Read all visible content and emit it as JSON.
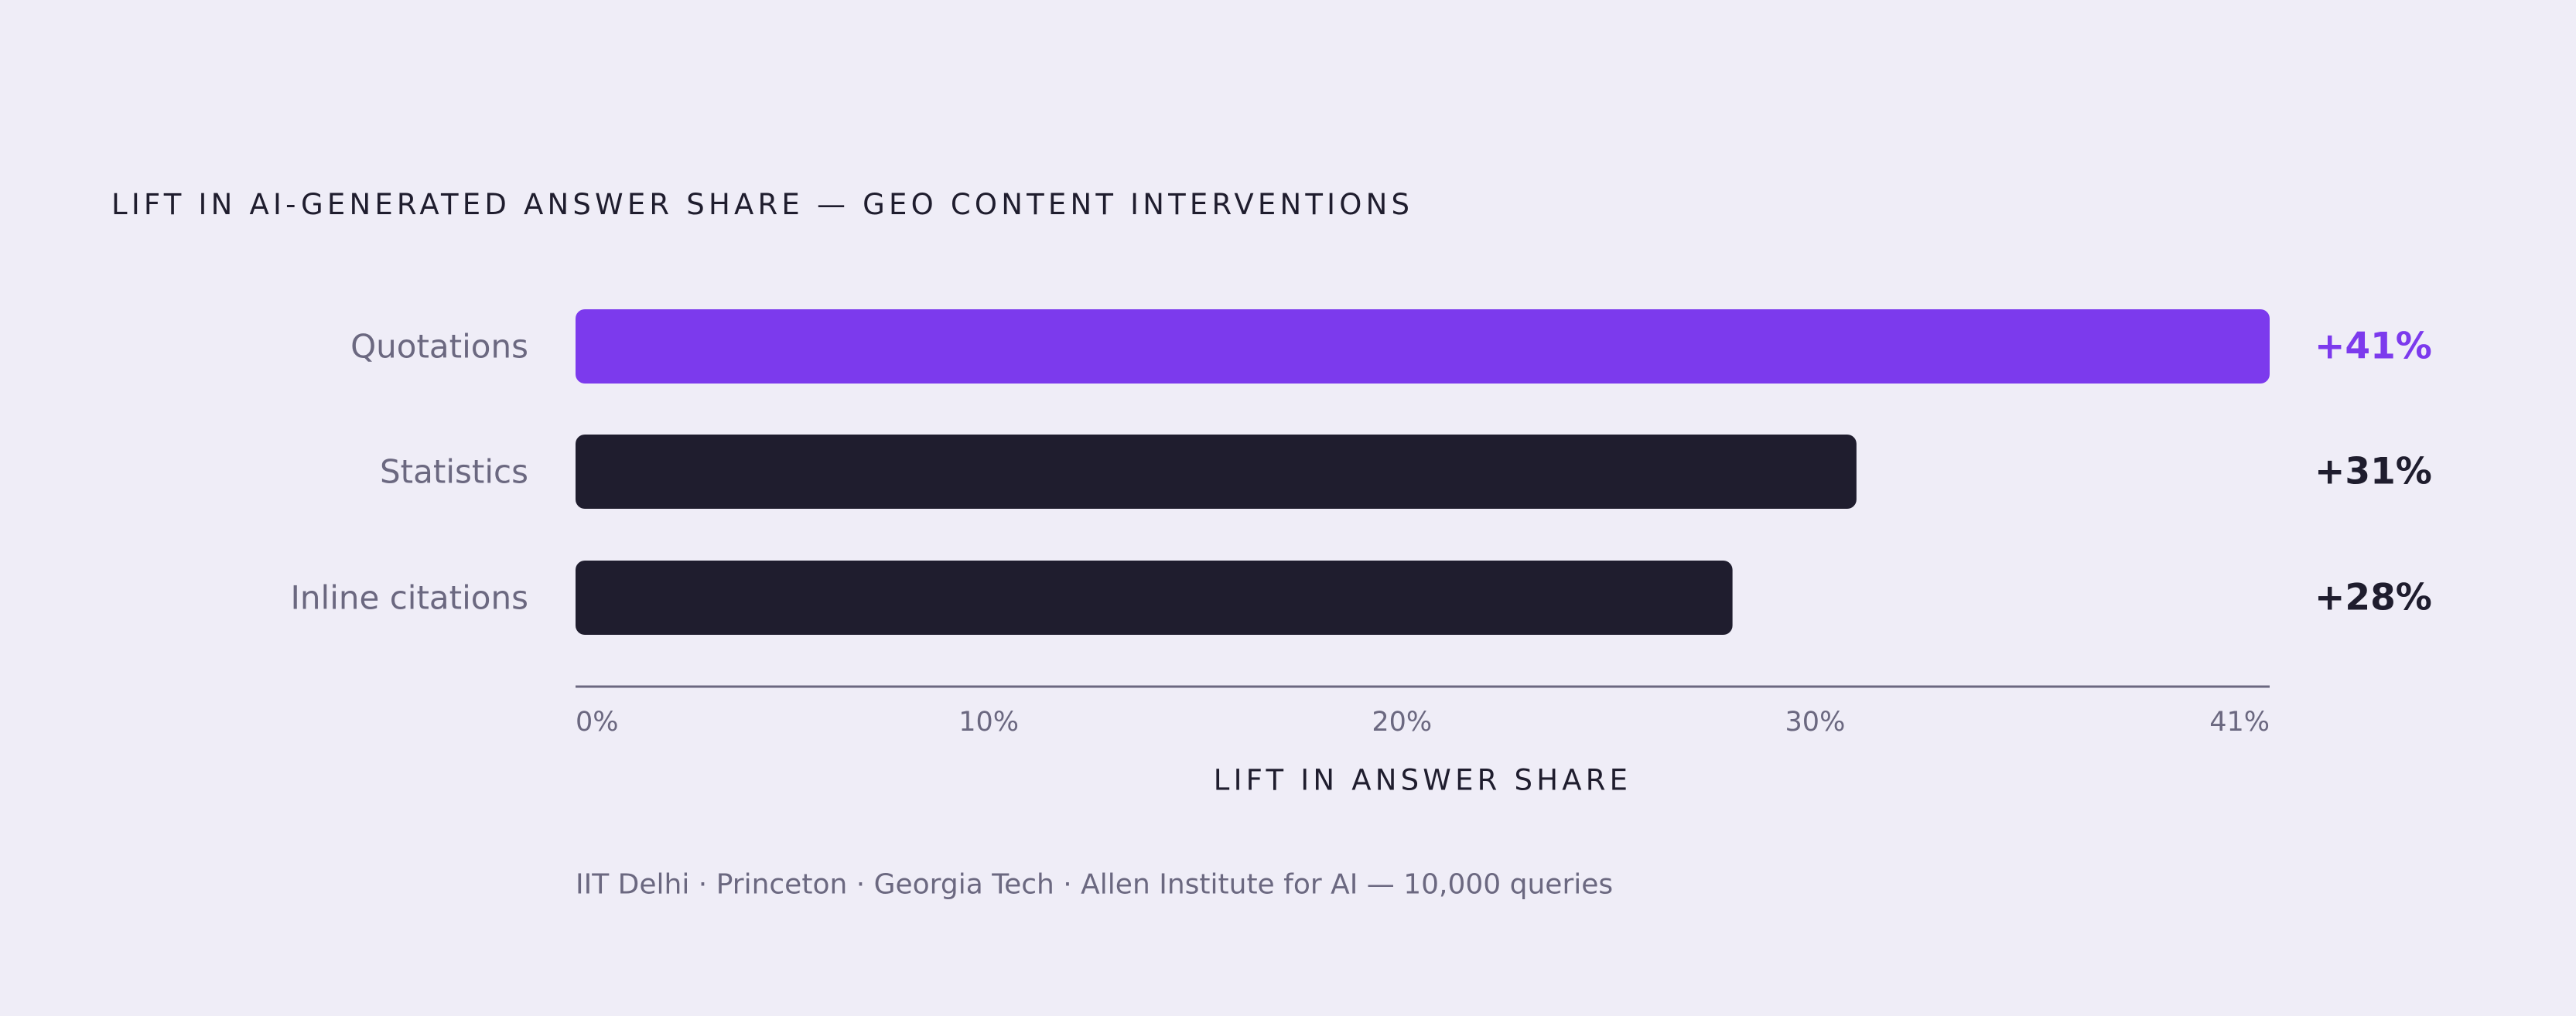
{
  "chart_data": {
    "type": "bar",
    "orientation": "horizontal",
    "title": "LIFT IN AI-GENERATED ANSWER SHARE — GEO CONTENT INTERVENTIONS",
    "categories": [
      "Quotations",
      "Statistics",
      "Inline citations"
    ],
    "values": [
      41,
      31,
      28
    ],
    "value_labels": [
      "+41%",
      "+31%",
      "+28%"
    ],
    "xlabel": "LIFT IN ANSWER SHARE",
    "xlim": [
      0,
      41
    ],
    "x_ticks": [
      0,
      10,
      20,
      30,
      41
    ],
    "x_tick_labels": [
      "0%",
      "10%",
      "20%",
      "30%",
      "41%"
    ],
    "source": "IIT Delhi · Princeton · Georgia Tech · Allen Institute for AI — 10,000 queries",
    "grid": false,
    "colors": {
      "highlight": "#7c3aed",
      "bar": "#1f1d2e",
      "category_label": "#6b6880",
      "tick_label": "#6b6880",
      "title": "#1f1d2e",
      "axis": "#6b6880",
      "background": "#efedf7"
    }
  }
}
